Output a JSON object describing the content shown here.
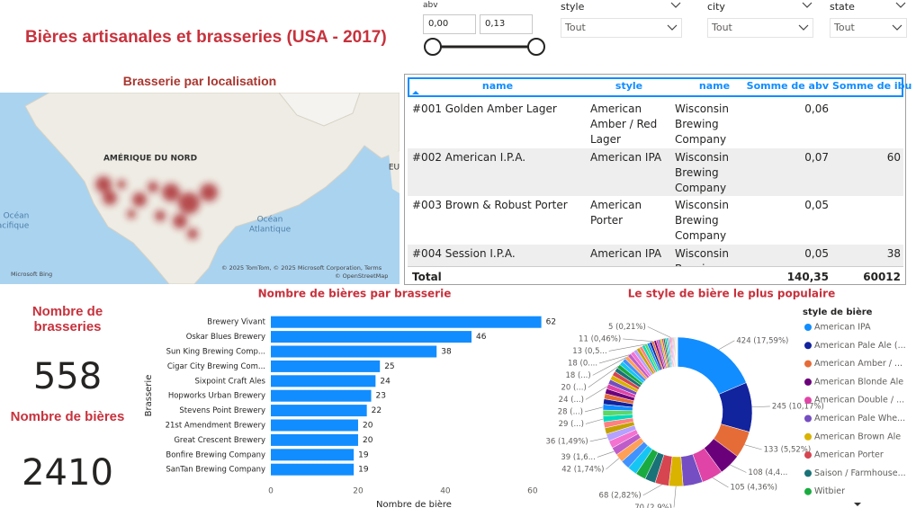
{
  "header": {
    "title": "Bières artisanales et brasseries (USA - 2017)"
  },
  "slicers": [
    {
      "label": "abv",
      "range": [
        "0,00",
        "0,13"
      ]
    },
    {
      "label": "style",
      "value": "Tout"
    },
    {
      "label": "city",
      "value": "Tout"
    },
    {
      "label": "state",
      "value": "Tout"
    }
  ],
  "map": {
    "title": "Brasserie par localisation",
    "continent": "AMÉRIQUE DU NORD",
    "ocean_pacific": [
      "Océan",
      "Pacifique"
    ],
    "ocean_atlantic": [
      "Océan",
      "Atlantique"
    ],
    "europe": "EU",
    "attribution": "© 2025 TomTom, © 2025 Microsoft Corporation, Terms",
    "osm": "© OpenStreetMap",
    "provider": "Microsoft Bing"
  },
  "table": {
    "columns": [
      "name",
      "style",
      "name",
      "Somme de abv",
      "Somme de ibu"
    ],
    "rows": [
      [
        "#001 Golden Amber Lager",
        "American Amber / Red Lager",
        "Wisconsin Brewing Company",
        "0,06",
        null
      ],
      [
        "#002 American I.P.A.",
        "American IPA",
        "Wisconsin Brewing Company",
        "0,07",
        "60"
      ],
      [
        "#003 Brown & Robust Porter",
        "American Porter",
        "Wisconsin Brewing Company",
        "0,05",
        null
      ],
      [
        "#004 Session I.P.A.",
        "American IPA",
        "Wisconsin Brewing Company",
        "0,05",
        "38"
      ]
    ],
    "total": [
      "Total",
      "140,35",
      "60012"
    ]
  },
  "cards": [
    {
      "label": "Nombre de brasseries",
      "value": 558
    },
    {
      "label": "Nombre de bières",
      "value": 2410
    }
  ],
  "chart_data": [
    {
      "type": "bar",
      "orientation": "horizontal",
      "title": "Nombre de bières par brasserie",
      "x_label": "Nombre de bière",
      "y_label": "Brasserie",
      "color": "#118DFF",
      "categories": [
        "Brewery Vivant",
        "Oskar Blues Brewery",
        "Sun King Brewing Comp...",
        "Cigar City Brewing Com...",
        "Sixpoint Craft Ales",
        "Hopworks Urban Brewery",
        "Stevens Point Brewery",
        "21st Amendment Brewery",
        "Great Crescent Brewery",
        "Bonfire Brewing Company",
        "SanTan Brewing Company"
      ],
      "values": [
        62,
        46,
        38,
        25,
        24,
        23,
        22,
        20,
        20,
        19,
        19
      ],
      "xlim": [
        0,
        66
      ],
      "xticks": [
        0,
        20,
        40,
        60
      ],
      "grid": false
    },
    {
      "type": "pie",
      "title": "Le style de bière le plus populaire",
      "legend_title": "style de bière",
      "donut": true,
      "palette": [
        "#118DFF",
        "#12239E",
        "#E66C37",
        "#6B007B",
        "#E044A7",
        "#744EC2",
        "#D9B300",
        "#D64550",
        "#197278",
        "#1AAB40",
        "#15C6F4",
        "#4092FF",
        "#FFA058",
        "#BE5DC9",
        "#F472D0",
        "#B5A1FF",
        "#C4A200",
        "#FF8080",
        "#00DBBC",
        "#5BD667"
      ],
      "categories": [
        "American IPA",
        "American Pale Ale (...",
        "American Amber / ...",
        "American Blonde Ale",
        "American Double / ...",
        "American Pale Whe...",
        "American Brown Ale",
        "American Porter",
        "Saison / Farmhouse...",
        "Witbier",
        null,
        null,
        null,
        null,
        null,
        null,
        null,
        null,
        null,
        null,
        null,
        null,
        null,
        null,
        null,
        null,
        null,
        null,
        null,
        null,
        null,
        null,
        null,
        null,
        null,
        null,
        null,
        null,
        null,
        null,
        null,
        null,
        null,
        null,
        null,
        null,
        null,
        null,
        null,
        null,
        null,
        null,
        null,
        null,
        null,
        null,
        null,
        null,
        null,
        null,
        null,
        null,
        null,
        null,
        null
      ],
      "values": [
        424,
        245,
        133,
        108,
        105,
        97,
        70,
        68,
        52,
        51,
        47,
        44,
        42,
        39,
        37,
        36,
        31,
        30,
        29,
        29,
        28,
        27,
        26,
        25,
        24,
        24,
        23,
        22,
        21,
        20,
        20,
        19,
        18,
        18,
        18,
        17,
        16,
        15,
        14,
        13,
        13,
        12,
        11,
        11,
        10,
        9,
        9,
        8,
        8,
        7,
        7,
        6,
        6,
        5,
        5,
        5,
        4,
        4,
        3,
        3,
        2,
        2,
        1,
        1,
        1
      ],
      "value_labels": [
        "424 (17,59%)",
        "245 (10,17%)",
        "133 (5,52%)",
        "108 (4,4...",
        "105 (4,36%)",
        null,
        "70 (2,9%)",
        "68 (2,82%)",
        null,
        null,
        null,
        null,
        "42 (1,74%)",
        "39 (1,6...",
        null,
        "36 (1,49%)",
        null,
        null,
        "29 (...)",
        null,
        "28 (...)",
        null,
        null,
        null,
        "24 (...)",
        null,
        null,
        null,
        null,
        "20 (...)",
        null,
        null,
        "18 (...)",
        "18 (0....",
        null,
        null,
        null,
        null,
        null,
        "13 (0,5...",
        null,
        null,
        "11 (0,46%)",
        null,
        null,
        null,
        null,
        null,
        null,
        null,
        null,
        null,
        null,
        "5 (0,21%)",
        null,
        null,
        null,
        null,
        null,
        null,
        null,
        null,
        null,
        null,
        null
      ]
    }
  ]
}
